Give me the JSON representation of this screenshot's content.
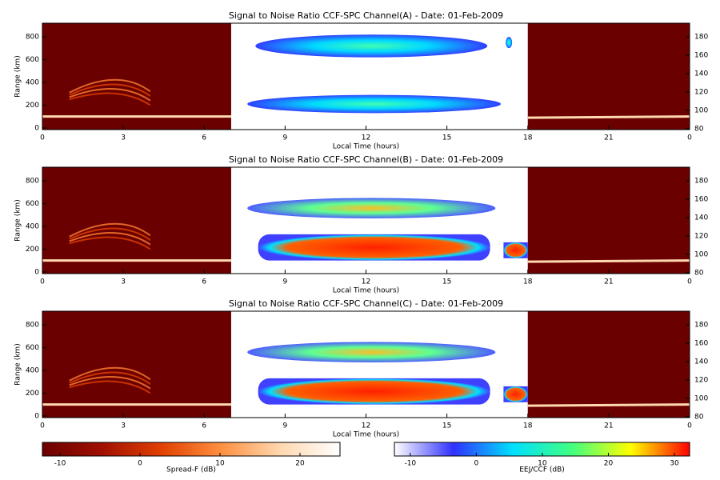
{
  "chart_data": [
    {
      "type": "heatmap",
      "title": "Signal to Noise Ratio CCF-SPC Channel(A) - Date: 01-Feb-2009",
      "xlabel": "Local Time (hours)",
      "ylabel": "Range (km)",
      "xlim": [
        0,
        24
      ],
      "xticks": [
        0,
        3,
        6,
        9,
        12,
        15,
        18,
        21,
        {
          "value": 24,
          "label": "0"
        }
      ],
      "ylim": [
        -15,
        920
      ],
      "yticks": [
        0,
        200,
        400,
        600,
        800
      ],
      "y2lim": [
        79,
        195
      ],
      "y2ticks": [
        80,
        100,
        120,
        140,
        160,
        180
      ]
    },
    {
      "type": "heatmap",
      "title": "Signal to Noise Ratio CCF-SPC Channel(B) - Date: 01-Feb-2009",
      "xlabel": "Local Time (hours)",
      "ylabel": "Range (km)",
      "xlim": [
        0,
        24
      ],
      "xticks": [
        0,
        3,
        6,
        9,
        12,
        15,
        18,
        21,
        {
          "value": 24,
          "label": "0"
        }
      ],
      "ylim": [
        -15,
        920
      ],
      "yticks": [
        0,
        200,
        400,
        600,
        800
      ],
      "y2lim": [
        79,
        195
      ],
      "y2ticks": [
        80,
        100,
        120,
        140,
        160,
        180
      ]
    },
    {
      "type": "heatmap",
      "title": "Signal to Noise Ratio CCF-SPC Channel(C) - Date: 01-Feb-2009",
      "xlabel": "Local Time (hours)",
      "ylabel": "Range (km)",
      "xlim": [
        0,
        24
      ],
      "xticks": [
        0,
        3,
        6,
        9,
        12,
        15,
        18,
        21,
        {
          "value": 24,
          "label": "0"
        }
      ],
      "ylim": [
        -15,
        920
      ],
      "yticks": [
        0,
        200,
        400,
        600,
        800
      ],
      "y2lim": [
        79,
        195
      ],
      "y2ticks": [
        80,
        100,
        120,
        140,
        160,
        180
      ]
    },
    {
      "type": "colorbar",
      "label": "Spread-F (dB)",
      "lim": [
        -12.2,
        25
      ],
      "ticks": [
        -10,
        0,
        10,
        20
      ],
      "colors": [
        "#6b0000",
        "#a01000",
        "#e04000",
        "#ff9040",
        "#ffd8b0",
        "#ffffff"
      ]
    },
    {
      "type": "colorbar",
      "label": "EEJ/CCF (dB)",
      "lim": [
        -12.4,
        32.3
      ],
      "ticks": [
        -10,
        0,
        10,
        20,
        30
      ],
      "colors": [
        "#ffffff",
        "#3030ff",
        "#00e0ff",
        "#40ff80",
        "#ffff00",
        "#ff0000"
      ]
    }
  ]
}
